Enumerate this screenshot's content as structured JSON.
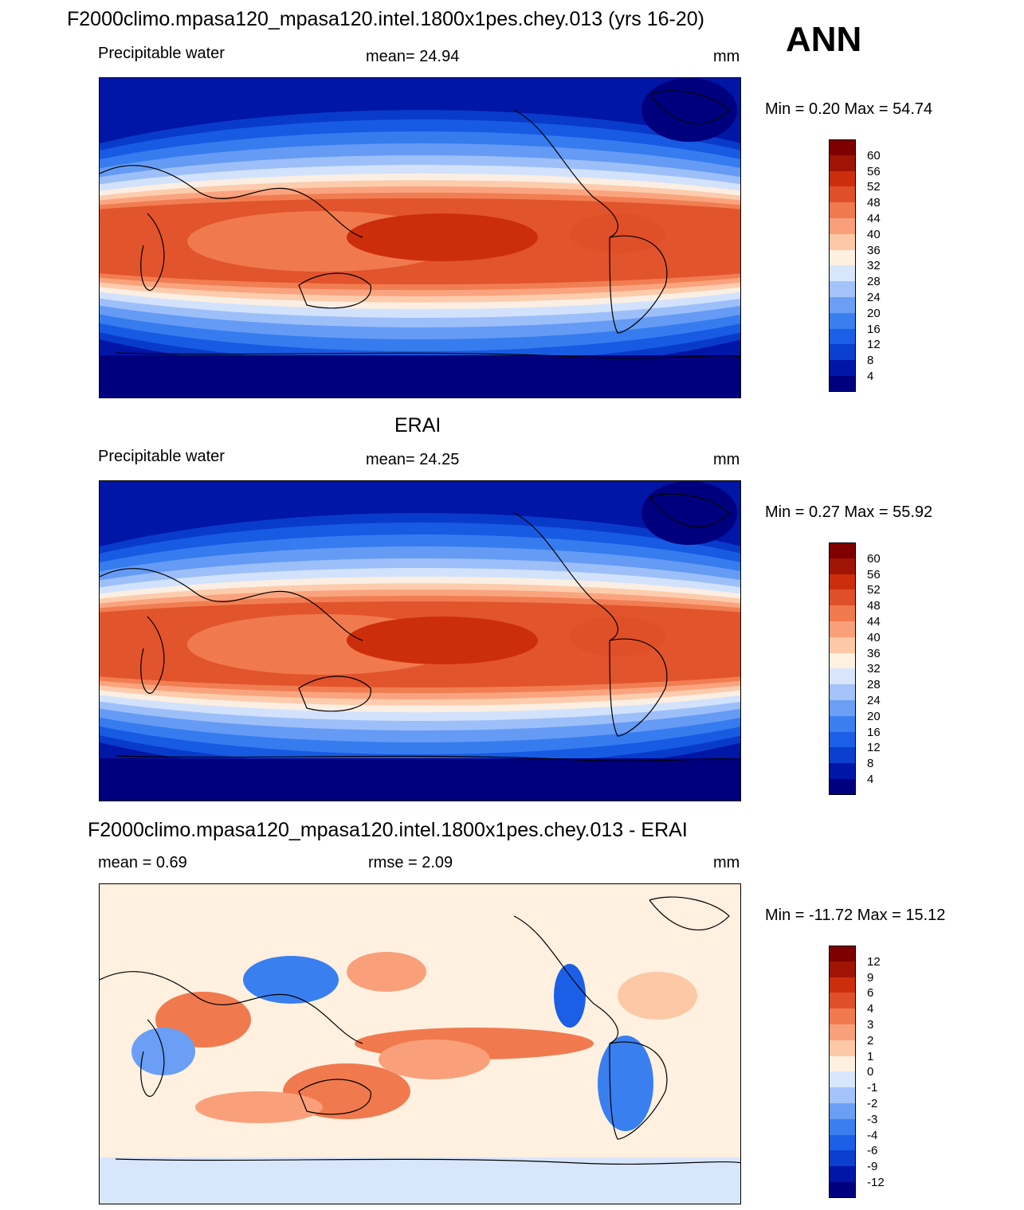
{
  "header": {
    "case_title": "F2000climo.mpasa120_mpasa120.intel.1800x1pes.chey.013 (yrs 16-20)",
    "season": "ANN"
  },
  "colors": {
    "abs_scale": [
      "#00007f",
      "#0016a6",
      "#0a3fcf",
      "#1a5fe6",
      "#3a7ff0",
      "#6a9ff5",
      "#a3c3fa",
      "#d8e6fc",
      "#fff0e0",
      "#fcc8a6",
      "#f9a07a",
      "#f07a4e",
      "#e05028",
      "#cc2e0c",
      "#9f1404",
      "#7f0000"
    ],
    "diff_scale": [
      "#00007f",
      "#0016a6",
      "#0a3fcf",
      "#1a5fe6",
      "#3a7ff0",
      "#6a9ff5",
      "#a3c3fa",
      "#d8e6fc",
      "#fff0e0",
      "#fcc8a6",
      "#f9a07a",
      "#f07a4e",
      "#e05028",
      "#cc2e0c",
      "#9f1404",
      "#7f0000"
    ]
  },
  "panels": [
    {
      "id": "model",
      "title": "",
      "variable": "Precipitable water",
      "stat": "mean=  24.94",
      "units": "mm",
      "minmax": "Min =   0.20 Max =  54.74",
      "levels": [
        "60",
        "56",
        "52",
        "48",
        "44",
        "40",
        "36",
        "32",
        "28",
        "24",
        "20",
        "16",
        "12",
        "8",
        "4"
      ]
    },
    {
      "id": "obs",
      "title": "ERAI",
      "variable": "Precipitable water",
      "stat": "mean=  24.25",
      "units": "mm",
      "minmax": "Min =   0.27 Max =  55.92",
      "levels": [
        "60",
        "56",
        "52",
        "48",
        "44",
        "40",
        "36",
        "32",
        "28",
        "24",
        "20",
        "16",
        "12",
        "8",
        "4"
      ]
    },
    {
      "id": "diff",
      "title": "F2000climo.mpasa120_mpasa120.intel.1800x1pes.chey.013 - ERAI",
      "variable": "mean =   0.69",
      "stat": "rmse =   2.09",
      "units": "mm",
      "minmax": "Min = -11.72 Max =  15.12",
      "levels": [
        "12",
        "9",
        "6",
        "4",
        "3",
        "2",
        "1",
        "0",
        "-1",
        "-2",
        "-3",
        "-4",
        "-6",
        "-9",
        "-12"
      ]
    }
  ],
  "chart_data": [
    {
      "type": "heatmap",
      "title": "F2000climo.mpasa120_mpasa120.intel.1800x1pes.chey.013 (yrs 16-20)",
      "variable": "Precipitable water",
      "units": "mm",
      "mean": 24.94,
      "min": 0.2,
      "max": 54.74,
      "contour_levels": [
        4,
        8,
        12,
        16,
        20,
        24,
        28,
        32,
        36,
        40,
        44,
        48,
        52,
        56,
        60
      ]
    },
    {
      "type": "heatmap",
      "title": "ERAI",
      "variable": "Precipitable water",
      "units": "mm",
      "mean": 24.25,
      "min": 0.27,
      "max": 55.92,
      "contour_levels": [
        4,
        8,
        12,
        16,
        20,
        24,
        28,
        32,
        36,
        40,
        44,
        48,
        52,
        56,
        60
      ]
    },
    {
      "type": "heatmap",
      "title": "F2000climo.mpasa120_mpasa120.intel.1800x1pes.chey.013 - ERAI",
      "units": "mm",
      "mean": 0.69,
      "rmse": 2.09,
      "min": -11.72,
      "max": 15.12,
      "contour_levels": [
        -12,
        -9,
        -6,
        -4,
        -3,
        -2,
        -1,
        0,
        1,
        2,
        3,
        4,
        6,
        9,
        12
      ]
    }
  ]
}
